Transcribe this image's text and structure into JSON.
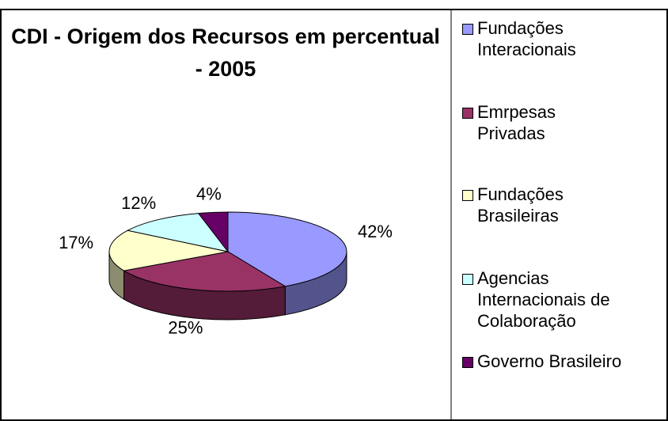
{
  "chart_data": {
    "type": "pie",
    "title": "CDI - Origem dos Recursos em percentual - 2005",
    "categories": [
      "Fundações Interacionais",
      "Emrpesas Privadas",
      "Fundações Brasileiras",
      "Agencias Internacionais de Colaboração",
      "Governo Brasileiro"
    ],
    "values": [
      42,
      25,
      17,
      12,
      4
    ],
    "value_labels": [
      "42%",
      "25%",
      "17%",
      "12%",
      "4%"
    ],
    "colors": [
      "#9999ff",
      "#993366",
      "#ffffcc",
      "#ccffff",
      "#660066"
    ],
    "legend": "right"
  }
}
